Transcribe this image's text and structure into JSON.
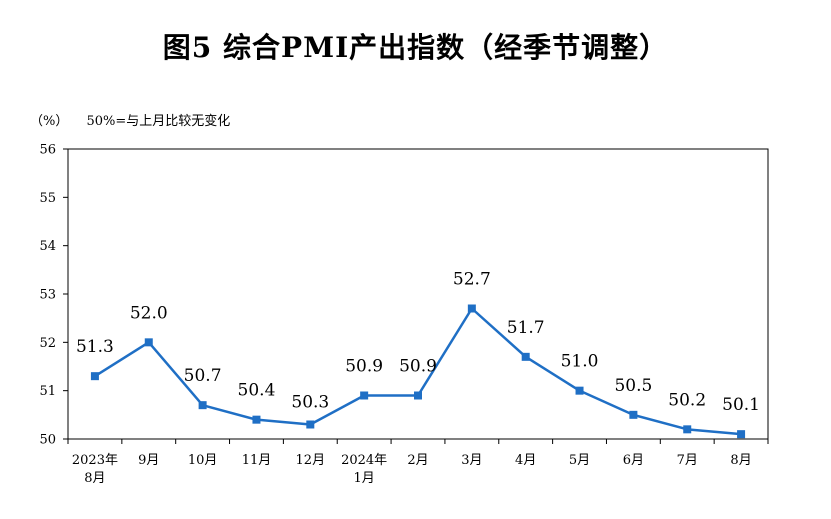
{
  "chart_data": {
    "type": "line",
    "title": "图5  综合PMI产出指数（经季节调整）",
    "ylabel": "（%）",
    "reference_note": "50%=与上月比较无变化",
    "xlabel": "",
    "ylim": [
      50,
      56
    ],
    "yticks": [
      "50",
      "51",
      "52",
      "53",
      "54",
      "55",
      "56"
    ],
    "grid": false,
    "legend": "none",
    "line_color": "#1F6FC5",
    "categories": [
      [
        "2023年",
        "8月"
      ],
      [
        "9月"
      ],
      [
        "10月"
      ],
      [
        "11月"
      ],
      [
        "12月"
      ],
      [
        "2024年",
        "1月"
      ],
      [
        "2月"
      ],
      [
        "3月"
      ],
      [
        "4月"
      ],
      [
        "5月"
      ],
      [
        "6月"
      ],
      [
        "7月"
      ],
      [
        "8月"
      ]
    ],
    "series": [
      {
        "values": [
          51.3,
          52.0,
          50.7,
          50.4,
          50.3,
          50.9,
          50.9,
          52.7,
          51.7,
          51.0,
          50.5,
          50.2,
          50.1
        ],
        "labels": [
          "51.3",
          "52.0",
          "50.7",
          "50.4",
          "50.3",
          "50.9",
          "50.9",
          "52.7",
          "51.7",
          "51.0",
          "50.5",
          "50.2",
          "50.1"
        ]
      }
    ]
  }
}
